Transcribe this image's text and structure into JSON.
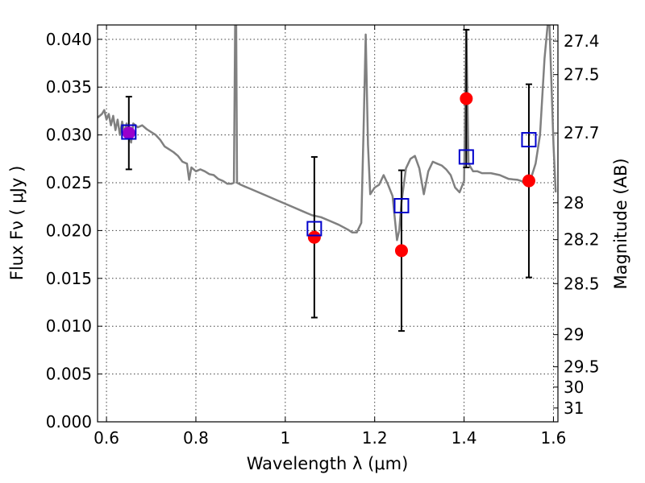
{
  "chart_data": {
    "type": "scatter",
    "xlabel": "Wavelength  λ (μm)",
    "ylabel": "Flux  Fν  ( μJy )",
    "y2label": "Magnitude (AB)",
    "xlim": [
      0.58,
      1.61
    ],
    "ylim": [
      0.0,
      0.0415
    ],
    "grid": true,
    "x_ticks": [
      "0.6",
      "0.8",
      "1",
      "1.2",
      "1.4",
      "1.6"
    ],
    "y_ticks": [
      "0.000",
      "0.005",
      "0.010",
      "0.015",
      "0.020",
      "0.025",
      "0.030",
      "0.035",
      "0.040"
    ],
    "y2_ticks": [
      {
        "label": "27.4",
        "value": 27.4
      },
      {
        "label": "27.5",
        "value": 27.5
      },
      {
        "label": "27.7",
        "value": 27.7
      },
      {
        "label": "28",
        "value": 28.0
      },
      {
        "label": "28.2",
        "value": 28.2
      },
      {
        "label": "28.5",
        "value": 28.5
      },
      {
        "label": "29",
        "value": 29.0
      },
      {
        "label": "29.5",
        "value": 29.5
      },
      {
        "label": "30",
        "value": 30.0
      },
      {
        "label": "31",
        "value": 31.0
      }
    ],
    "colors": {
      "model": "#808080",
      "observed": "#ff0000",
      "model_photometry": "#0000cc",
      "overlap": "#9900cc",
      "errorbar": "#000000"
    },
    "observed": [
      {
        "x": 0.65,
        "y": 0.0302,
        "err": 0.0038
      },
      {
        "x": 1.065,
        "y": 0.0193,
        "err": 0.0084
      },
      {
        "x": 1.26,
        "y": 0.0179,
        "err": 0.0084
      },
      {
        "x": 1.405,
        "y": 0.0338,
        "err": 0.0072
      },
      {
        "x": 1.545,
        "y": 0.0252,
        "err": 0.0101
      }
    ],
    "model_photometry": [
      {
        "x": 0.65,
        "y": 0.0303
      },
      {
        "x": 1.065,
        "y": 0.0202
      },
      {
        "x": 1.26,
        "y": 0.0226
      },
      {
        "x": 1.405,
        "y": 0.0277
      },
      {
        "x": 1.545,
        "y": 0.0295
      }
    ],
    "model_spectrum": [
      [
        0.58,
        0.0318
      ],
      [
        0.59,
        0.0322
      ],
      [
        0.595,
        0.0326
      ],
      [
        0.6,
        0.0316
      ],
      [
        0.605,
        0.0322
      ],
      [
        0.61,
        0.031
      ],
      [
        0.615,
        0.032
      ],
      [
        0.62,
        0.0305
      ],
      [
        0.625,
        0.0316
      ],
      [
        0.63,
        0.03
      ],
      [
        0.635,
        0.0314
      ],
      [
        0.64,
        0.0302
      ],
      [
        0.645,
        0.0312
      ],
      [
        0.65,
        0.0298
      ],
      [
        0.655,
        0.0292
      ],
      [
        0.66,
        0.0312
      ],
      [
        0.67,
        0.0308
      ],
      [
        0.68,
        0.031
      ],
      [
        0.69,
        0.0306
      ],
      [
        0.7,
        0.0303
      ],
      [
        0.71,
        0.03
      ],
      [
        0.72,
        0.0295
      ],
      [
        0.73,
        0.0288
      ],
      [
        0.74,
        0.0285
      ],
      [
        0.75,
        0.0282
      ],
      [
        0.76,
        0.0278
      ],
      [
        0.77,
        0.0272
      ],
      [
        0.78,
        0.027
      ],
      [
        0.785,
        0.0253
      ],
      [
        0.79,
        0.0266
      ],
      [
        0.8,
        0.0262
      ],
      [
        0.81,
        0.0264
      ],
      [
        0.82,
        0.0262
      ],
      [
        0.83,
        0.0259
      ],
      [
        0.84,
        0.0258
      ],
      [
        0.85,
        0.0254
      ],
      [
        0.86,
        0.0252
      ],
      [
        0.87,
        0.0249
      ],
      [
        0.88,
        0.0249
      ],
      [
        0.885,
        0.025
      ],
      [
        0.888,
        0.042
      ],
      [
        0.89,
        0.042
      ],
      [
        0.892,
        0.025
      ],
      [
        0.9,
        0.0248
      ],
      [
        0.91,
        0.0246
      ],
      [
        0.92,
        0.0244
      ],
      [
        0.94,
        0.024
      ],
      [
        0.96,
        0.0236
      ],
      [
        0.98,
        0.0232
      ],
      [
        1.0,
        0.0228
      ],
      [
        1.02,
        0.0224
      ],
      [
        1.04,
        0.022
      ],
      [
        1.06,
        0.0216
      ],
      [
        1.08,
        0.0214
      ],
      [
        1.1,
        0.021
      ],
      [
        1.12,
        0.0206
      ],
      [
        1.14,
        0.0201
      ],
      [
        1.15,
        0.0198
      ],
      [
        1.16,
        0.0198
      ],
      [
        1.17,
        0.0208
      ],
      [
        1.175,
        0.03
      ],
      [
        1.18,
        0.0405
      ],
      [
        1.185,
        0.029
      ],
      [
        1.19,
        0.0238
      ],
      [
        1.2,
        0.0245
      ],
      [
        1.21,
        0.0248
      ],
      [
        1.22,
        0.0258
      ],
      [
        1.23,
        0.0248
      ],
      [
        1.24,
        0.0236
      ],
      [
        1.25,
        0.019
      ],
      [
        1.255,
        0.02
      ],
      [
        1.26,
        0.023
      ],
      [
        1.27,
        0.0265
      ],
      [
        1.28,
        0.0275
      ],
      [
        1.29,
        0.0278
      ],
      [
        1.3,
        0.0265
      ],
      [
        1.31,
        0.0238
      ],
      [
        1.32,
        0.0262
      ],
      [
        1.33,
        0.0272
      ],
      [
        1.34,
        0.027
      ],
      [
        1.35,
        0.0268
      ],
      [
        1.36,
        0.0264
      ],
      [
        1.37,
        0.0258
      ],
      [
        1.38,
        0.0245
      ],
      [
        1.39,
        0.024
      ],
      [
        1.4,
        0.0252
      ],
      [
        1.405,
        0.041
      ],
      [
        1.41,
        0.027
      ],
      [
        1.42,
        0.0262
      ],
      [
        1.43,
        0.0262
      ],
      [
        1.44,
        0.026
      ],
      [
        1.46,
        0.026
      ],
      [
        1.48,
        0.0258
      ],
      [
        1.5,
        0.0254
      ],
      [
        1.52,
        0.0253
      ],
      [
        1.54,
        0.025
      ],
      [
        1.55,
        0.0255
      ],
      [
        1.56,
        0.027
      ],
      [
        1.57,
        0.03
      ],
      [
        1.58,
        0.038
      ],
      [
        1.59,
        0.043
      ],
      [
        1.6,
        0.029
      ],
      [
        1.605,
        0.024
      ]
    ]
  }
}
